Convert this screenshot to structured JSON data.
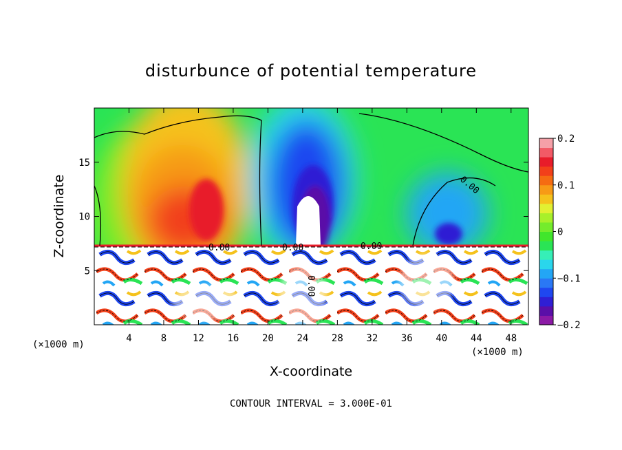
{
  "chart_data": {
    "type": "heatmap",
    "title": "disturbunce of potential temperature",
    "xlabel": "X-coordinate",
    "ylabel": "Z-coordinate",
    "x_unit": "(×1000 m)",
    "xlim": [
      0,
      50
    ],
    "ylim": [
      0,
      20
    ],
    "x_ticks": [
      "4",
      "8",
      "12",
      "16",
      "20",
      "24",
      "28",
      "32",
      "36",
      "40",
      "44",
      "48"
    ],
    "x_tick_values": [
      4,
      8,
      12,
      16,
      20,
      24,
      28,
      32,
      36,
      40,
      44,
      48
    ],
    "y_ticks": [
      "5",
      "10",
      "15"
    ],
    "y_tick_values": [
      5,
      10,
      15
    ],
    "colorbar": {
      "range": [
        -0.2,
        0.2
      ],
      "tick_labels": [
        "0.2",
        "0.1",
        "0",
        "−0.1",
        "−0.2"
      ],
      "tick_values": [
        0.2,
        0.1,
        0,
        -0.1,
        -0.2
      ],
      "colors": [
        "#8c1aa6",
        "#5a0fa8",
        "#2f1fd4",
        "#1f47f0",
        "#2a78f5",
        "#23a6f5",
        "#2ad6ec",
        "#36efb7",
        "#2ae455",
        "#41e62c",
        "#74ec2c",
        "#a8f02a",
        "#e2f032",
        "#f5c21c",
        "#f79a16",
        "#f56c12",
        "#f2401a",
        "#e81c2a",
        "#f25a66",
        "#f5a0a8"
      ]
    },
    "contour_labels": [
      "0.00",
      "0.00",
      "0.00",
      "0.00",
      "0.00"
    ],
    "contour_interval_text": "CONTOUR INTERVAL = 3.000E-01",
    "grid": false
  }
}
